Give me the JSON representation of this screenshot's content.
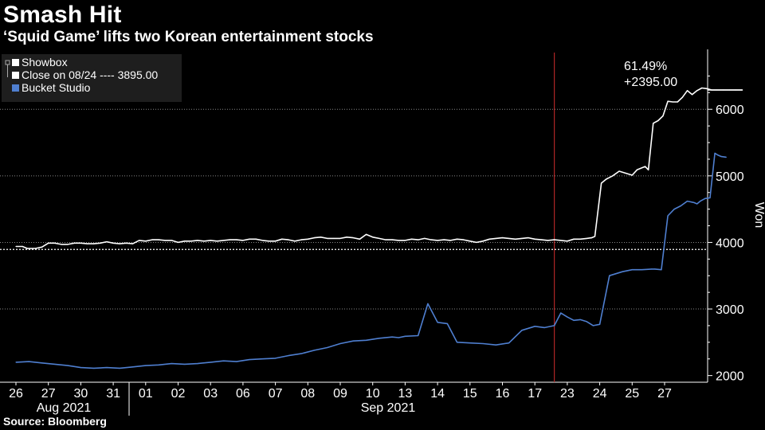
{
  "header": {
    "title": "Smash Hit",
    "subtitle": "‘Squid Game’ lifts two Korean entertainment stocks"
  },
  "footer": {
    "source": "Source: Bloomberg"
  },
  "chart_data": {
    "type": "line",
    "ylabel": "Won",
    "ylim": [
      1900,
      6900
    ],
    "yticks": [
      2000,
      3000,
      4000,
      5000,
      6000
    ],
    "ytick_labels": [
      "2000",
      "3000",
      "4000",
      "5000",
      "6000"
    ],
    "x_tick_labels": [
      "26",
      "27",
      "30",
      "31",
      "01",
      "02",
      "03",
      "06",
      "07",
      "08",
      "09",
      "10",
      "13",
      "14",
      "15",
      "16",
      "17",
      "23",
      "24",
      "25",
      "27"
    ],
    "month_labels": [
      "Aug 2021",
      "Sep 2021"
    ],
    "legend": {
      "position": "top-left",
      "entries": [
        "Showbox",
        "Close on 08/24 ---- 3895.00",
        "Bucket Studio"
      ]
    },
    "annotation": {
      "pct": "61.49%",
      "change": "+2395.00"
    },
    "reference_line": {
      "name": "Close on 08/24",
      "value": 3895
    },
    "event_marker_x": 16.6,
    "colors": {
      "showbox": "#ffffff",
      "bucket": "#4f7fd0",
      "event": "#b02626",
      "grid": "#888888",
      "legend_bg": "#1e1e1e"
    },
    "series": [
      {
        "name": "Showbox",
        "x": [
          0,
          0.2,
          0.35,
          0.6,
          0.8,
          1.0,
          1.2,
          1.4,
          1.6,
          1.8,
          2.0,
          2.2,
          2.4,
          2.6,
          2.8,
          3.0,
          3.2,
          3.4,
          3.6,
          3.8,
          4.0,
          4.2,
          4.4,
          4.6,
          4.8,
          5.0,
          5.2,
          5.4,
          5.6,
          5.8,
          6.0,
          6.2,
          6.4,
          6.6,
          6.8,
          7.0,
          7.2,
          7.4,
          7.6,
          7.8,
          8.0,
          8.2,
          8.4,
          8.6,
          8.8,
          9.0,
          9.2,
          9.4,
          9.6,
          9.8,
          10.0,
          10.2,
          10.4,
          10.6,
          10.8,
          11.0,
          11.2,
          11.4,
          11.6,
          11.8,
          12.0,
          12.2,
          12.4,
          12.6,
          12.8,
          13.0,
          13.2,
          13.4,
          13.6,
          13.8,
          14.0,
          14.2,
          14.4,
          14.6,
          14.8,
          15.0,
          15.2,
          15.4,
          15.6,
          15.8,
          16.0,
          16.2,
          16.4,
          16.6,
          16.8,
          17.0,
          17.2,
          17.4,
          17.6,
          17.75,
          17.85,
          18.05,
          18.2,
          18.4,
          18.6,
          18.8,
          19.0,
          19.15,
          19.3,
          19.4,
          19.5,
          19.65,
          19.8,
          19.95,
          20.1,
          20.25,
          20.4,
          20.55,
          20.7,
          20.85,
          21.0,
          21.15,
          21.3,
          21.45,
          21.6,
          21.8,
          22.0,
          22.2,
          22.4
        ],
        "values": [
          3940,
          3940,
          3910,
          3910,
          3930,
          3990,
          3990,
          3970,
          3970,
          3990,
          3990,
          3980,
          3980,
          3990,
          4010,
          3990,
          3980,
          3990,
          3980,
          4030,
          4020,
          4040,
          4040,
          4030,
          4030,
          4000,
          4020,
          4020,
          4030,
          4020,
          4030,
          4020,
          4030,
          4040,
          4040,
          4030,
          4050,
          4050,
          4030,
          4020,
          4020,
          4050,
          4040,
          4020,
          4040,
          4050,
          4070,
          4080,
          4060,
          4060,
          4060,
          4080,
          4070,
          4050,
          4120,
          4080,
          4060,
          4040,
          4040,
          4030,
          4030,
          4050,
          4040,
          4060,
          4040,
          4030,
          4040,
          4030,
          4050,
          4040,
          4020,
          4000,
          4020,
          4050,
          4060,
          4070,
          4060,
          4050,
          4060,
          4070,
          4050,
          4040,
          4030,
          4040,
          4030,
          4020,
          4050,
          4050,
          4060,
          4070,
          4090,
          4890,
          4950,
          5000,
          5070,
          5040,
          5010,
          5090,
          5120,
          5140,
          5090,
          5790,
          5830,
          5900,
          6120,
          6110,
          6110,
          6180,
          6280,
          6220,
          6280,
          6320,
          6310,
          6290,
          6290,
          6290,
          6290,
          6290,
          6290
        ]
      },
      {
        "name": "Bucket Studio",
        "x": [
          0,
          0.4,
          0.8,
          1.2,
          1.6,
          2.0,
          2.4,
          2.8,
          3.2,
          3.6,
          4.0,
          4.4,
          4.8,
          5.2,
          5.6,
          6.0,
          6.4,
          6.8,
          7.2,
          7.6,
          8.0,
          8.4,
          8.8,
          9.2,
          9.6,
          10.0,
          10.4,
          10.8,
          11.2,
          11.6,
          11.8,
          12.0,
          12.4,
          12.7,
          13.0,
          13.3,
          13.6,
          14.0,
          14.4,
          14.8,
          15.2,
          15.6,
          16.0,
          16.3,
          16.6,
          16.8,
          17.0,
          17.2,
          17.4,
          17.6,
          17.8,
          18.0,
          18.3,
          18.7,
          19.0,
          19.3,
          19.6,
          19.7,
          19.9,
          20.1,
          20.3,
          20.5,
          20.7,
          20.9,
          21.0,
          21.1,
          21.25,
          21.4,
          21.55,
          21.65,
          21.75,
          21.9
        ],
        "values": [
          2200,
          2210,
          2190,
          2170,
          2150,
          2120,
          2110,
          2120,
          2110,
          2130,
          2150,
          2160,
          2180,
          2170,
          2180,
          2200,
          2220,
          2210,
          2240,
          2250,
          2260,
          2300,
          2330,
          2380,
          2420,
          2480,
          2520,
          2530,
          2560,
          2580,
          2570,
          2590,
          2600,
          3080,
          2800,
          2780,
          2500,
          2490,
          2480,
          2460,
          2490,
          2680,
          2740,
          2720,
          2750,
          2940,
          2880,
          2830,
          2840,
          2810,
          2750,
          2770,
          3500,
          3560,
          3590,
          3590,
          3600,
          3600,
          3590,
          4400,
          4500,
          4550,
          4620,
          4600,
          4580,
          4620,
          4660,
          4670,
          5340,
          5310,
          5290,
          5280
        ]
      }
    ]
  }
}
